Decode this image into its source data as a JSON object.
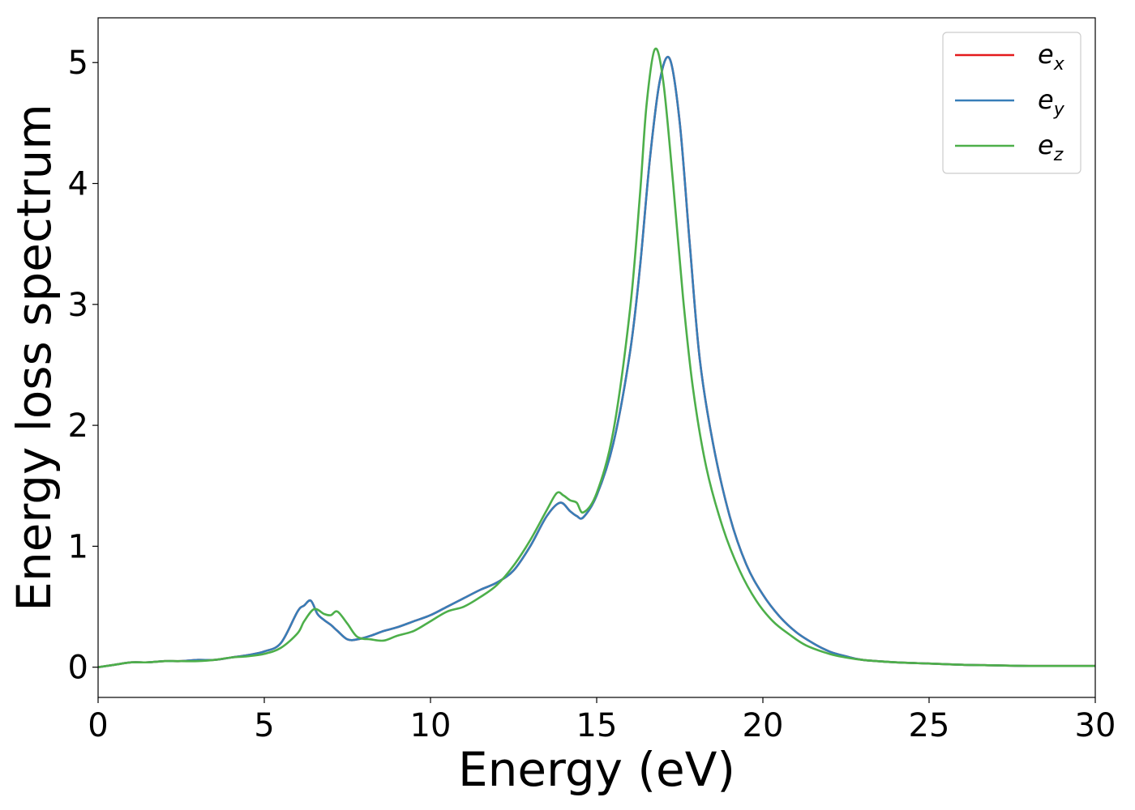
{
  "chart_data": {
    "type": "line",
    "xlabel": "Energy (eV)",
    "ylabel": "Energy loss spectrum",
    "xlim": [
      0,
      30
    ],
    "ylim": [
      -0.25,
      5.37
    ],
    "xticks": [
      0,
      5,
      10,
      15,
      20,
      25,
      30
    ],
    "yticks": [
      0,
      1,
      2,
      3,
      4,
      5
    ],
    "xtick_labels": [
      "0",
      "5",
      "10",
      "15",
      "20",
      "25",
      "30"
    ],
    "ytick_labels": [
      "0",
      "1",
      "2",
      "3",
      "4",
      "5"
    ],
    "grid": false,
    "legend_position": "top-right",
    "series": [
      {
        "name": "e_x",
        "label_base": "e",
        "label_sub": "x",
        "color": "#e41a1c",
        "x": [
          0,
          0.5,
          1,
          1.5,
          2,
          2.5,
          3,
          3.5,
          4,
          4.5,
          5,
          5.5,
          6,
          6.2,
          6.4,
          6.6,
          6.8,
          7,
          7.2,
          7.5,
          7.8,
          8.2,
          8.6,
          9,
          9.5,
          10,
          10.5,
          11,
          11.5,
          12,
          12.5,
          13,
          13.5,
          13.9,
          14.2,
          14.4,
          14.6,
          15,
          15.5,
          16,
          16.3,
          16.6,
          16.9,
          17.2,
          17.5,
          17.8,
          18.1,
          18.5,
          19,
          19.5,
          20,
          20.5,
          21,
          21.5,
          22,
          22.5,
          23,
          24,
          25,
          26,
          27,
          28,
          29,
          30
        ],
        "y": [
          0,
          0.02,
          0.04,
          0.04,
          0.05,
          0.05,
          0.06,
          0.06,
          0.08,
          0.1,
          0.13,
          0.2,
          0.46,
          0.51,
          0.55,
          0.44,
          0.39,
          0.35,
          0.3,
          0.23,
          0.23,
          0.26,
          0.3,
          0.33,
          0.38,
          0.43,
          0.5,
          0.57,
          0.64,
          0.7,
          0.8,
          1.0,
          1.25,
          1.36,
          1.29,
          1.25,
          1.24,
          1.42,
          1.85,
          2.6,
          3.3,
          4.2,
          4.85,
          5.03,
          4.5,
          3.5,
          2.55,
          1.85,
          1.25,
          0.85,
          0.6,
          0.42,
          0.29,
          0.2,
          0.13,
          0.09,
          0.06,
          0.04,
          0.03,
          0.02,
          0.015,
          0.01,
          0.01,
          0.01
        ]
      },
      {
        "name": "e_y",
        "label_base": "e",
        "label_sub": "y",
        "color": "#377eb8",
        "x": [
          0,
          0.5,
          1,
          1.5,
          2,
          2.5,
          3,
          3.5,
          4,
          4.5,
          5,
          5.5,
          6,
          6.2,
          6.4,
          6.6,
          6.8,
          7,
          7.2,
          7.5,
          7.8,
          8.2,
          8.6,
          9,
          9.5,
          10,
          10.5,
          11,
          11.5,
          12,
          12.5,
          13,
          13.5,
          13.9,
          14.2,
          14.4,
          14.6,
          15,
          15.5,
          16,
          16.3,
          16.6,
          16.9,
          17.2,
          17.5,
          17.8,
          18.1,
          18.5,
          19,
          19.5,
          20,
          20.5,
          21,
          21.5,
          22,
          22.5,
          23,
          24,
          25,
          26,
          27,
          28,
          29,
          30
        ],
        "y": [
          0,
          0.02,
          0.04,
          0.04,
          0.05,
          0.05,
          0.06,
          0.06,
          0.08,
          0.1,
          0.13,
          0.2,
          0.46,
          0.51,
          0.55,
          0.44,
          0.39,
          0.35,
          0.3,
          0.23,
          0.23,
          0.26,
          0.3,
          0.33,
          0.38,
          0.43,
          0.5,
          0.57,
          0.64,
          0.7,
          0.8,
          1.0,
          1.25,
          1.36,
          1.29,
          1.25,
          1.24,
          1.42,
          1.85,
          2.6,
          3.3,
          4.2,
          4.85,
          5.03,
          4.5,
          3.5,
          2.55,
          1.85,
          1.25,
          0.85,
          0.6,
          0.42,
          0.29,
          0.2,
          0.13,
          0.09,
          0.06,
          0.04,
          0.03,
          0.02,
          0.015,
          0.01,
          0.01,
          0.01
        ]
      },
      {
        "name": "e_z",
        "label_base": "e",
        "label_sub": "z",
        "color": "#4daf4a",
        "x": [
          0,
          0.5,
          1,
          1.5,
          2,
          2.5,
          3,
          3.5,
          4,
          4.5,
          5,
          5.5,
          6,
          6.2,
          6.5,
          6.8,
          7,
          7.2,
          7.5,
          7.8,
          8.2,
          8.6,
          9,
          9.5,
          10,
          10.5,
          11,
          11.5,
          12,
          12.5,
          13,
          13.5,
          13.8,
          14,
          14.2,
          14.4,
          14.6,
          15,
          15.5,
          16,
          16.3,
          16.5,
          16.75,
          17,
          17.3,
          17.6,
          17.9,
          18.3,
          18.8,
          19.3,
          19.8,
          20.3,
          20.8,
          21.3,
          22,
          22.5,
          23,
          24,
          25,
          26,
          27,
          28,
          29,
          30
        ],
        "y": [
          0,
          0.02,
          0.04,
          0.04,
          0.05,
          0.05,
          0.05,
          0.06,
          0.08,
          0.09,
          0.11,
          0.16,
          0.28,
          0.38,
          0.48,
          0.44,
          0.43,
          0.46,
          0.36,
          0.25,
          0.23,
          0.22,
          0.26,
          0.3,
          0.38,
          0.46,
          0.5,
          0.58,
          0.68,
          0.84,
          1.05,
          1.3,
          1.44,
          1.42,
          1.38,
          1.36,
          1.28,
          1.44,
          1.95,
          2.95,
          3.9,
          4.65,
          5.11,
          4.85,
          4.0,
          3.05,
          2.3,
          1.65,
          1.15,
          0.8,
          0.55,
          0.38,
          0.27,
          0.18,
          0.11,
          0.08,
          0.06,
          0.04,
          0.03,
          0.02,
          0.015,
          0.01,
          0.01,
          0.01
        ]
      }
    ]
  }
}
